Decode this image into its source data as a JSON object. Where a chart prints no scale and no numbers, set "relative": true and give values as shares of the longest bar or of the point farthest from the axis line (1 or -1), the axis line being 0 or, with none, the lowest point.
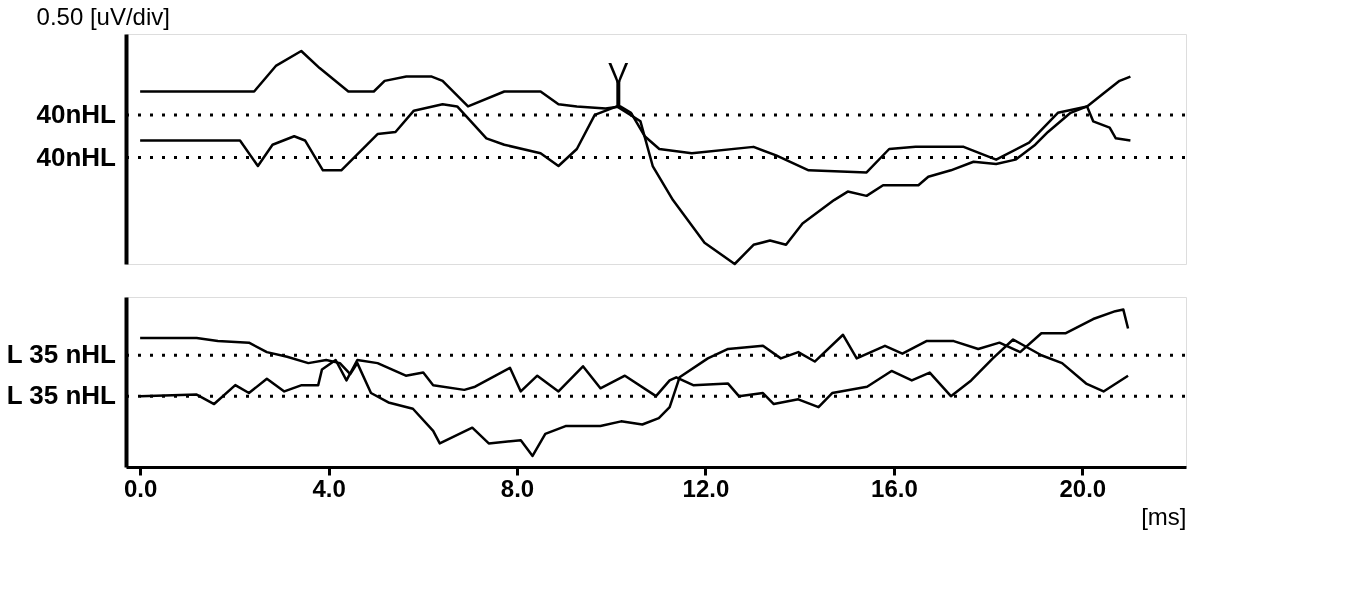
{
  "chart_data": [
    {
      "type": "line",
      "relative": true,
      "legend": false,
      "grid": false,
      "tick_labels": false,
      "marker": "none",
      "line_style": "solid",
      "xlim": [
        -0.3,
        22.2
      ],
      "annotations": [
        "0.50 [uV/div]",
        {
          "text": "V",
          "x": 10.15,
          "y": 0.74
        }
      ],
      "ref_lines": [
        {
          "axis": "y",
          "value": 0.7,
          "label": "40nHL",
          "line_style": "dotted",
          "color": "#000000"
        },
        {
          "axis": "y",
          "value": 0.5,
          "label": "40nHL",
          "line_style": "dotted",
          "color": "#000000"
        }
      ],
      "series": [
        {
          "color": "#000000",
          "x": [
            0,
            2.12,
            2.42,
            2.88,
            3.42,
            3.81,
            4.42,
            4.96,
            5.19,
            5.65,
            6.19,
            6.42,
            6.96,
            7.73,
            8.5,
            8.88,
            9.27,
            9.88,
            10.19,
            10.42,
            10.71,
            11.02,
            11.71,
            13.02,
            13.5,
            14.19,
            15.42,
            15.9,
            16.46,
            17.48,
            18.17,
            18.87,
            19.48,
            20.1,
            20.5,
            20.79,
            21.02
          ],
          "values": [
            0.81,
            0.81,
            0.81,
            0.93,
            1.0,
            0.92,
            0.81,
            0.81,
            0.86,
            0.88,
            0.88,
            0.86,
            0.74,
            0.81,
            0.81,
            0.75,
            0.74,
            0.73,
            0.74,
            0.71,
            0.6,
            0.54,
            0.52,
            0.55,
            0.51,
            0.44,
            0.43,
            0.54,
            0.55,
            0.55,
            0.49,
            0.57,
            0.71,
            0.74,
            0.81,
            0.86,
            0.88
          ]
        },
        {
          "color": "#000000",
          "x": [
            0,
            2.12,
            2.5,
            2.81,
            3.27,
            3.5,
            3.88,
            4.27,
            5.04,
            5.42,
            5.81,
            6.42,
            6.73,
            7.35,
            7.73,
            8.5,
            8.88,
            9.27,
            9.65,
            10.12,
            10.62,
            10.88,
            11.31,
            11.98,
            12.62,
            13.02,
            13.37,
            13.71,
            14.06,
            14.73,
            15.02,
            15.42,
            15.77,
            16.52,
            16.73,
            17.21,
            17.69,
            18.17,
            18.58,
            19.0,
            19.27,
            19.75,
            20.1,
            20.23,
            20.58,
            20.71,
            21.02
          ],
          "values": [
            0.58,
            0.58,
            0.46,
            0.56,
            0.6,
            0.58,
            0.44,
            0.44,
            0.61,
            0.62,
            0.72,
            0.75,
            0.74,
            0.59,
            0.56,
            0.52,
            0.46,
            0.54,
            0.7,
            0.74,
            0.67,
            0.46,
            0.3,
            0.1,
            0,
            0.09,
            0.11,
            0.09,
            0.19,
            0.3,
            0.34,
            0.32,
            0.37,
            0.37,
            0.41,
            0.44,
            0.48,
            0.47,
            0.49,
            0.56,
            0.62,
            0.71,
            0.74,
            0.67,
            0.64,
            0.59,
            0.58
          ]
        }
      ]
    },
    {
      "type": "line",
      "relative": true,
      "legend": false,
      "grid": false,
      "tick_labels": "x",
      "marker": "none",
      "line_style": "solid",
      "xlim": [
        -0.3,
        22.2
      ],
      "xlabel": "[ms]",
      "xticks": [
        {
          "value": 0,
          "label": "0.0"
        },
        {
          "value": 4,
          "label": "4.0"
        },
        {
          "value": 8,
          "label": "8.0"
        },
        {
          "value": 12,
          "label": "12.0"
        },
        {
          "value": 16,
          "label": "16.0"
        },
        {
          "value": 20,
          "label": "20.0"
        }
      ],
      "ref_lines": [
        {
          "axis": "y",
          "value": 0.71,
          "label": "L 35 nHL",
          "line_style": "dotted",
          "color": "#000000"
        },
        {
          "axis": "y",
          "value": 0.45,
          "label": "L 35 nHL",
          "line_style": "dotted",
          "color": "#000000"
        }
      ],
      "series": [
        {
          "color": "#000000",
          "x": [
            0,
            1.2,
            1.65,
            2.31,
            2.69,
            3.12,
            3.57,
            3.95,
            4.24,
            4.46,
            4.61,
            4.9,
            5.27,
            5.79,
            6.22,
            6.36,
            7.05,
            7.4,
            8.08,
            8.33,
            8.6,
            9.03,
            9.77,
            10.21,
            10.66,
            11.01,
            11.24,
            11.45,
            12.05,
            12.48,
            13.22,
            13.6,
            13.97,
            14.32,
            14.92,
            15.21,
            15.81,
            16.18,
            16.69,
            17.27,
            17.79,
            18.24,
            18.68,
            19.13,
            19.65,
            20.23,
            20.7,
            20.87,
            20.97
          ],
          "values": [
            0.82,
            0.82,
            0.8,
            0.79,
            0.73,
            0.7,
            0.66,
            0.68,
            0.66,
            0.59,
            0.66,
            0.47,
            0.41,
            0.37,
            0.23,
            0.15,
            0.25,
            0.15,
            0.17,
            0.07,
            0.21,
            0.26,
            0.26,
            0.29,
            0.27,
            0.31,
            0.38,
            0.57,
            0.69,
            0.75,
            0.77,
            0.69,
            0.73,
            0.67,
            0.84,
            0.69,
            0.77,
            0.72,
            0.8,
            0.8,
            0.75,
            0.79,
            0.73,
            0.85,
            0.85,
            0.94,
            0.99,
            1.0,
            0.88
          ]
        },
        {
          "color": "#000000",
          "x": [
            0,
            1.2,
            1.57,
            2.02,
            2.31,
            2.69,
            3.06,
            3.43,
            3.78,
            3.86,
            4.15,
            4.38,
            4.61,
            5.04,
            5.64,
            6.01,
            6.22,
            6.88,
            7.11,
            7.85,
            8.08,
            8.43,
            8.88,
            9.4,
            9.77,
            10.29,
            10.95,
            11.24,
            11.38,
            11.74,
            12.48,
            12.71,
            13.22,
            13.45,
            13.97,
            14.4,
            14.69,
            15.43,
            15.95,
            16.38,
            16.76,
            17.21,
            17.64,
            18.1,
            18.53,
            19.13,
            19.57,
            20.08,
            20.45,
            20.97
          ],
          "values": [
            0.45,
            0.46,
            0.4,
            0.52,
            0.47,
            0.56,
            0.48,
            0.52,
            0.52,
            0.62,
            0.68,
            0.55,
            0.68,
            0.66,
            0.58,
            0.6,
            0.52,
            0.49,
            0.51,
            0.63,
            0.48,
            0.58,
            0.48,
            0.64,
            0.5,
            0.58,
            0.45,
            0.55,
            0.57,
            0.52,
            0.53,
            0.45,
            0.47,
            0.4,
            0.43,
            0.38,
            0.47,
            0.51,
            0.61,
            0.55,
            0.6,
            0.45,
            0.55,
            0.69,
            0.81,
            0.71,
            0.66,
            0.53,
            0.48,
            0.58
          ]
        }
      ]
    }
  ]
}
